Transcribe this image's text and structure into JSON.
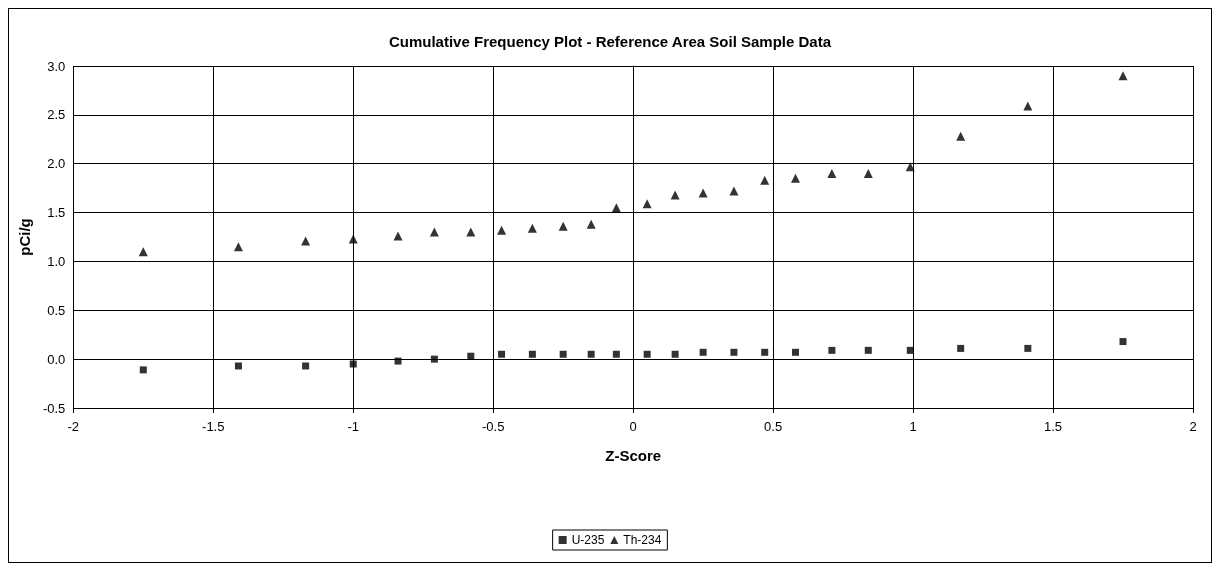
{
  "chart_data": {
    "type": "scatter",
    "title": "Cumulative Frequency Plot - Reference Area Soil Sample Data",
    "xlabel": "Z-Score",
    "ylabel": "pCi/g",
    "x": [
      -1.75,
      -1.41,
      -1.17,
      -1.0,
      -0.84,
      -0.71,
      -0.58,
      -0.47,
      -0.36,
      -0.25,
      -0.15,
      -0.06,
      0.05,
      0.15,
      0.25,
      0.36,
      0.47,
      0.58,
      0.71,
      0.84,
      0.99,
      1.17,
      1.41,
      1.75
    ],
    "series": [
      {
        "name": "U-235",
        "color": "#000000",
        "marker": "square",
        "values": [
          -0.11,
          -0.07,
          -0.07,
          -0.05,
          -0.02,
          0.0,
          0.03,
          0.05,
          0.05,
          0.05,
          0.05,
          0.05,
          0.05,
          0.05,
          0.07,
          0.07,
          0.07,
          0.07,
          0.09,
          0.09,
          0.09,
          0.11,
          0.11,
          0.18
        ]
      },
      {
        "name": "Th-234",
        "color": "#000000",
        "marker": "triangle",
        "values": [
          1.1,
          1.15,
          1.21,
          1.23,
          1.26,
          1.3,
          1.3,
          1.32,
          1.34,
          1.36,
          1.38,
          1.55,
          1.59,
          1.68,
          1.7,
          1.72,
          1.83,
          1.85,
          1.9,
          1.9,
          1.97,
          2.28,
          2.59,
          2.9
        ]
      }
    ],
    "xlim": [
      -2,
      2
    ],
    "xticks": [
      -2,
      -1.5,
      -1,
      -0.5,
      0,
      0.5,
      1,
      1.5,
      2
    ],
    "ylim": [
      -0.5,
      3
    ],
    "yticks": [
      {
        "value": -0.5,
        "label": "-0.5"
      },
      {
        "value": 0,
        "label": "0.0"
      },
      {
        "value": 0.5,
        "label": "0.5"
      },
      {
        "value": 1,
        "label": "1.0"
      },
      {
        "value": 1.5,
        "label": "1.5"
      },
      {
        "value": 2,
        "label": "2.0"
      },
      {
        "value": 2.5,
        "label": "2.5"
      },
      {
        "value": 3,
        "label": "3.0"
      }
    ],
    "grid": true,
    "legend": "bottom"
  }
}
